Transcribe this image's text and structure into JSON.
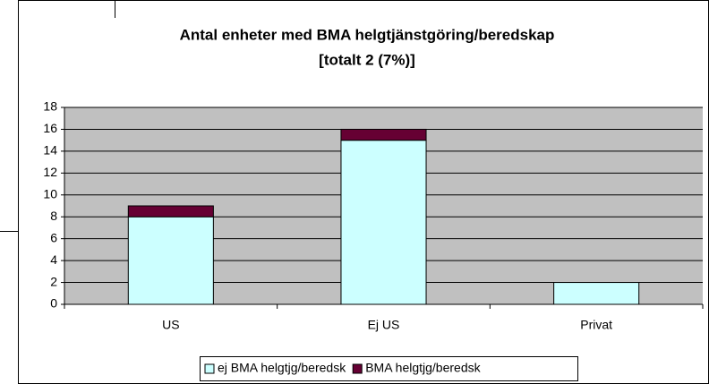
{
  "chart_data": {
    "type": "stacked_bar",
    "title": "Antal enheter med BMA helgtjänstgöring/beredskap",
    "subtitle": "[totalt 2 (7%)]",
    "categories": [
      "US",
      "Ej US",
      "Privat"
    ],
    "series": [
      {
        "name": "ej BMA helgtjg/beredsk",
        "color": "#ccffff",
        "values": [
          8,
          15,
          2
        ]
      },
      {
        "name": "BMA helgtjg/beredsk",
        "color": "#660033",
        "values": [
          1,
          1,
          0
        ]
      }
    ],
    "ylim": [
      0,
      18
    ],
    "yticks": [
      0,
      2,
      4,
      6,
      8,
      10,
      12,
      14,
      16,
      18
    ],
    "grid": true,
    "legend": "bottom"
  }
}
